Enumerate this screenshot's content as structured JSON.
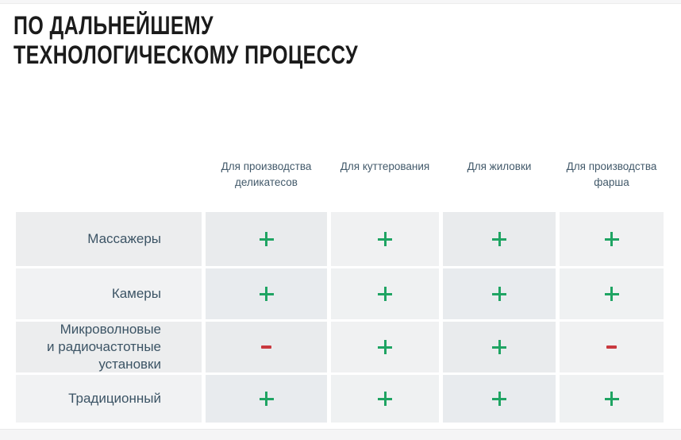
{
  "page": {
    "title_line1": "ПО ДАЛЬНЕЙШЕМУ",
    "title_line2": "ТЕХНОЛОГИЧЕСКОМУ ПРОЦЕССУ"
  },
  "chart_data": {
    "type": "table",
    "title": "ПО ДАЛЬНЕЙШЕМУ ТЕХНОЛОГИЧЕСКОМУ ПРОЦЕССУ",
    "columns": [
      "Для производства деликатесов",
      "Для куттерования",
      "Для жиловки",
      "Для производства фарша"
    ],
    "rows": [
      "Массажеры",
      "Камеры",
      "Микроволновые и радиочастотные установки",
      "Традиционный"
    ],
    "values": [
      [
        "+",
        "+",
        "+",
        "+"
      ],
      [
        "+",
        "+",
        "+",
        "+"
      ],
      [
        "−",
        "+",
        "+",
        "−"
      ],
      [
        "+",
        "+",
        "+",
        "+"
      ]
    ]
  },
  "display": {
    "row_label_lines": [
      "Массажеры",
      "Камеры",
      "Микроволновые\nи радиочастотные\nустановки",
      "Традиционный"
    ]
  },
  "icons": {
    "plus": "plus-cross",
    "minus": "minus-bar"
  },
  "colors": {
    "plus": "#1fa463",
    "minus": "#c9393f",
    "header_text": "#42596a",
    "label_text": "#3c5465",
    "title_text": "#1b1b1b"
  }
}
